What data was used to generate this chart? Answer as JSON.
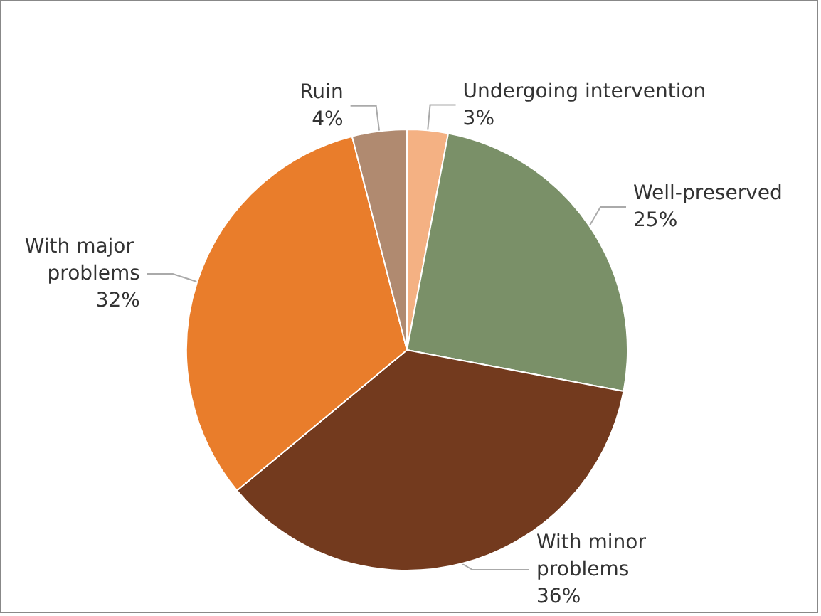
{
  "chart_data": {
    "type": "pie",
    "categories": [
      "Undergoing intervention",
      "Well-preserved",
      "With minor problems",
      "With major problems",
      "Ruin"
    ],
    "values": [
      3,
      25,
      36,
      32,
      4
    ],
    "colors": [
      "#f4b183",
      "#7a9068",
      "#733a1e",
      "#e97d2b",
      "#b08a70"
    ],
    "legend": false,
    "value_labels": [
      "3%",
      "25%",
      "36%",
      "32%",
      "4%"
    ]
  }
}
